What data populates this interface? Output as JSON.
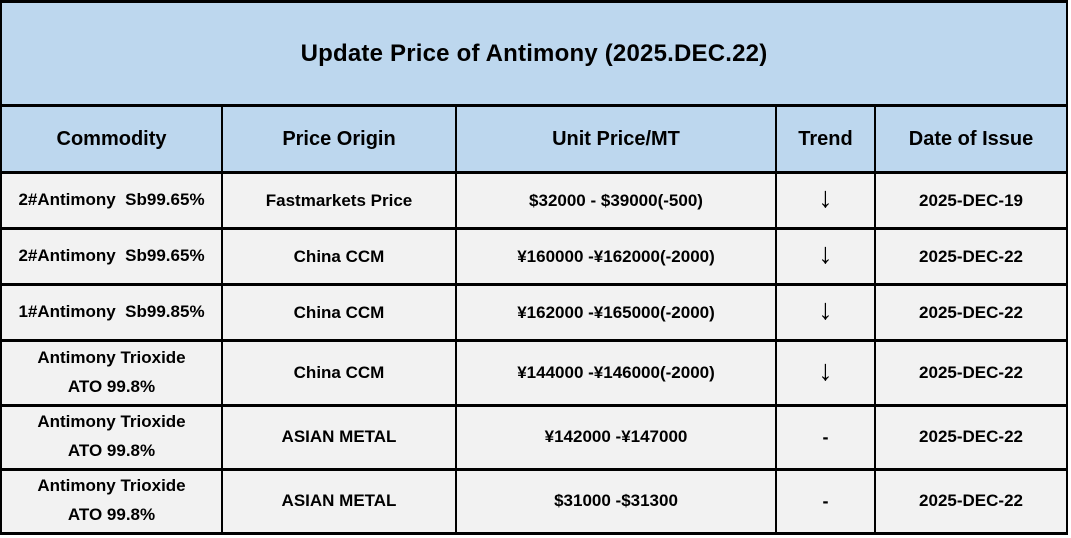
{
  "title": "Update Price of Antimony (2025.DEC.22)",
  "columns": {
    "commodity": "Commodity",
    "origin": "Price Origin",
    "price": "Unit Price/MT",
    "trend": "Trend",
    "date": "Date of Issue"
  },
  "colors": {
    "header_bg": "#BDD7EE",
    "row_bg": "#F2F2F2",
    "border": "#000000",
    "text": "#000000"
  },
  "rows": [
    {
      "commodity": "2#Antimony  Sb99.65%",
      "origin": "Fastmarkets Price",
      "price": "$32000 - $39000(-500)",
      "trend": "↓",
      "trend_meaning": "down",
      "date": "2025-DEC-19"
    },
    {
      "commodity": "2#Antimony  Sb99.65%",
      "origin": "China CCM",
      "price": "¥160000 -¥162000(-2000)",
      "trend": "↓",
      "trend_meaning": "down",
      "date": "2025-DEC-22"
    },
    {
      "commodity": "1#Antimony  Sb99.85%",
      "origin": "China CCM",
      "price": "¥162000 -¥165000(-2000)",
      "trend": "↓",
      "trend_meaning": "down",
      "date": "2025-DEC-22"
    },
    {
      "commodity": "Antimony Trioxide\nATO 99.8%",
      "origin": "China CCM",
      "price": "¥144000 -¥146000(-2000)",
      "trend": "↓",
      "trend_meaning": "down",
      "date": "2025-DEC-22"
    },
    {
      "commodity": "Antimony Trioxide\nATO 99.8%",
      "origin": "ASIAN METAL",
      "price": "¥142000 -¥147000",
      "trend": "-",
      "trend_meaning": "unchanged",
      "date": "2025-DEC-22"
    },
    {
      "commodity": "Antimony Trioxide\nATO 99.8%",
      "origin": "ASIAN METAL",
      "price": "$31000 -$31300",
      "trend": "-",
      "trend_meaning": "unchanged",
      "date": "2025-DEC-22"
    }
  ]
}
